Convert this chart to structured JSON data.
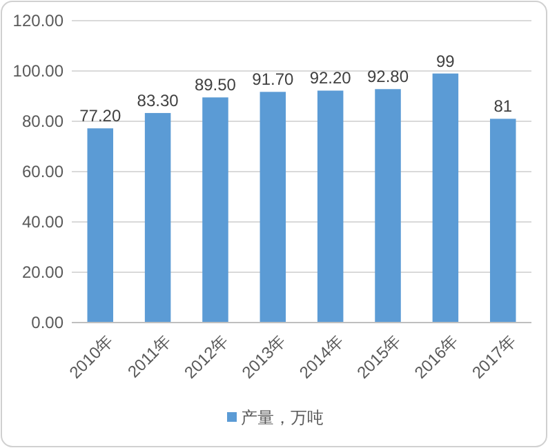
{
  "chart_data": {
    "type": "bar",
    "categories": [
      "2010年",
      "2011年",
      "2012年",
      "2013年",
      "2014年",
      "2015年",
      "2016年",
      "2017年"
    ],
    "series": [
      {
        "name": "产量，万吨",
        "color": "#5b9bd5",
        "values": [
          77.2,
          83.3,
          89.5,
          91.7,
          92.2,
          92.8,
          99,
          81
        ],
        "value_labels": [
          "77.20",
          "83.30",
          "89.50",
          "91.70",
          "92.20",
          "92.80",
          "99",
          "81"
        ]
      }
    ],
    "ylim": [
      0,
      120
    ],
    "yticks": [
      {
        "value": 0,
        "label": "0.00"
      },
      {
        "value": 20,
        "label": "20.00"
      },
      {
        "value": 40,
        "label": "40.00"
      },
      {
        "value": 60,
        "label": "60.00"
      },
      {
        "value": 80,
        "label": "80.00"
      },
      {
        "value": 100,
        "label": "100.00"
      },
      {
        "value": 120,
        "label": "120.00"
      }
    ],
    "grid": "y",
    "legend": "bottom"
  }
}
